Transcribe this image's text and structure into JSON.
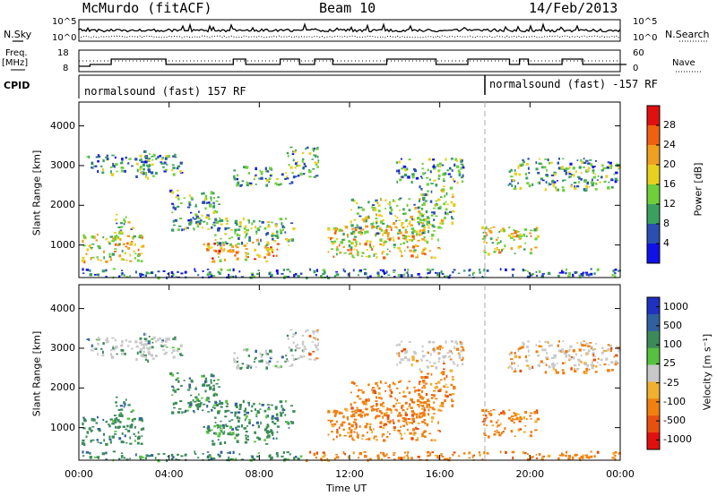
{
  "header": {
    "station": "McMurdo (fitACF)",
    "beam": "Beam 10",
    "date": "14/Feb/2013"
  },
  "top_panels": {
    "nsky_label": "N.Sky",
    "nsearch_label": "N.Search",
    "noise_tick_top": "10^5",
    "noise_tick_bottom": "10^0",
    "freq_label_1": "Freq.",
    "freq_label_2": "[MHz]",
    "freq_tick_top": "18",
    "freq_tick_bottom": "8",
    "nave_label": "Nave",
    "nave_tick_top": "60",
    "nave_tick_bottom": "0",
    "cpid_label": "CPID",
    "cpid_1": "normalsound (fast) 157 RF",
    "cpid_2": "normalsound (fast) -157 RF"
  },
  "colors": {
    "power": [
      "#1010e8",
      "#2a4fb0",
      "#3aa060",
      "#6fcf3a",
      "#e8d020",
      "#f0a020",
      "#f06010",
      "#e01010"
    ],
    "velocity": [
      "#2030c0",
      "#3060a0",
      "#3c8a5a",
      "#58c040",
      "#c8c8c8",
      "#f0b030",
      "#f08010",
      "#e85010",
      "#e01010"
    ]
  },
  "chart_data": [
    {
      "type": "heatmap",
      "name": "power",
      "xlabel": "",
      "ylabel": "Slant Range [km]",
      "x_ticks": [
        "00:00",
        "04:00",
        "08:00",
        "12:00",
        "16:00",
        "20:00",
        "00:00"
      ],
      "y_ticks": [
        "1000",
        "2000",
        "3000",
        "4000"
      ],
      "ylim": [
        180,
        4600
      ],
      "colorbar_label": "Power [dB]",
      "colorbar_ticks": [
        "4",
        "8",
        "12",
        "16",
        "20",
        "24",
        "28"
      ],
      "colorbar_range": [
        0,
        32
      ]
    },
    {
      "type": "heatmap",
      "name": "velocity",
      "xlabel": "Time UT",
      "ylabel": "Slant Range [km]",
      "x_ticks": [
        "00:00",
        "04:00",
        "08:00",
        "12:00",
        "16:00",
        "20:00",
        "00:00"
      ],
      "y_ticks": [
        "1000",
        "2000",
        "3000",
        "4000"
      ],
      "ylim": [
        180,
        4600
      ],
      "colorbar_label": "Velocity [m s⁻¹]",
      "colorbar_ticks": [
        "1000",
        "500",
        "100",
        "25",
        "-25",
        "-100",
        "-500",
        "-1000"
      ]
    }
  ]
}
